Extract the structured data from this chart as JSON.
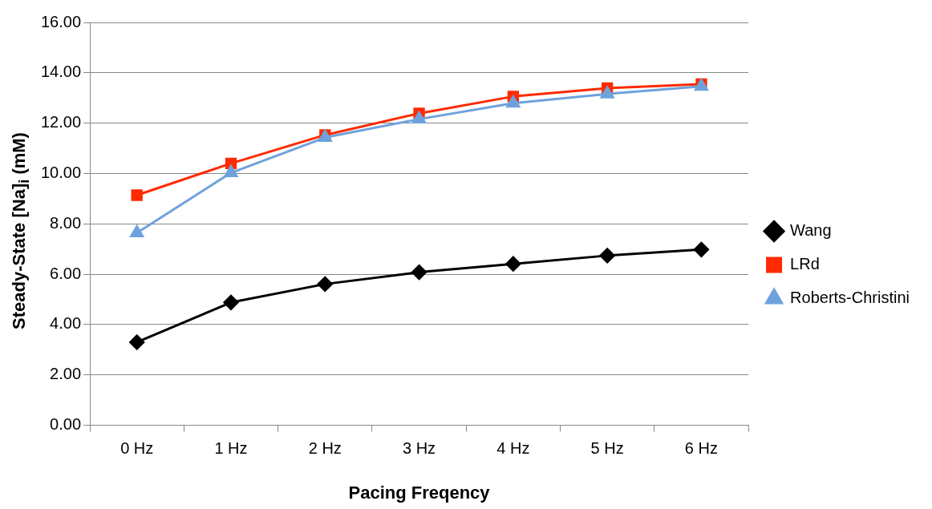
{
  "chart_data": {
    "type": "line",
    "xlabel": "Pacing Freqency",
    "ylabel": "Steady-State [Na]$_{i}$ (mM)",
    "categories": [
      "0 Hz",
      "1 Hz",
      "2 Hz",
      "3 Hz",
      "4 Hz",
      "5 Hz",
      "6 Hz"
    ],
    "series": [
      {
        "name": "Wang",
        "color": "#000000",
        "marker": "diamond",
        "values": [
          3.3,
          4.88,
          5.61,
          6.08,
          6.41,
          6.74,
          6.98
        ]
      },
      {
        "name": "LRd",
        "color": "#ff2a00",
        "marker": "square",
        "values": [
          9.14,
          10.4,
          11.53,
          12.39,
          13.06,
          13.39,
          13.55
        ]
      },
      {
        "name": "Roberts-Christini",
        "color": "#6fa2dc",
        "marker": "triangle",
        "values": [
          7.64,
          10.03,
          11.43,
          12.16,
          12.79,
          13.16,
          13.46
        ]
      }
    ],
    "ylim": [
      0,
      16
    ],
    "yticks": [
      {
        "value": 0,
        "label": "0.00"
      },
      {
        "value": 2,
        "label": "2.00"
      },
      {
        "value": 4,
        "label": "4.00"
      },
      {
        "value": 6,
        "label": "6.00"
      },
      {
        "value": 8,
        "label": "8.00"
      },
      {
        "value": 10,
        "label": "10.00"
      },
      {
        "value": 12,
        "label": "12.00"
      },
      {
        "value": 14,
        "label": "14.00"
      },
      {
        "value": 16,
        "label": "16.00"
      }
    ],
    "grid": "y",
    "legend": "right"
  }
}
